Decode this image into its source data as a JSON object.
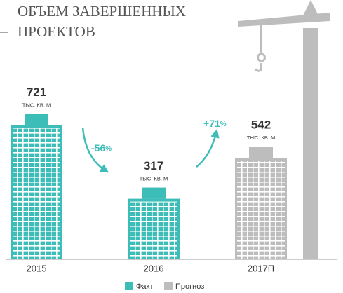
{
  "chart_data": {
    "type": "bar",
    "title_lines": [
      "ОБЪЕМ ЗАВЕРШЕННЫХ",
      "ПРОЕКТОВ"
    ],
    "categories": [
      "2015",
      "2016",
      "2017П"
    ],
    "series": [
      {
        "name": "Факт",
        "color": "#3dbdb8",
        "values": [
          721,
          317,
          null
        ]
      },
      {
        "name": "Прогноз",
        "color": "#bdbdbd",
        "values": [
          null,
          null,
          542
        ]
      }
    ],
    "unit_label": "ТЫС. КВ. М",
    "annotations": [
      {
        "number": "-56",
        "unit": "%"
      },
      {
        "number": "+71",
        "unit": "%"
      }
    ]
  }
}
